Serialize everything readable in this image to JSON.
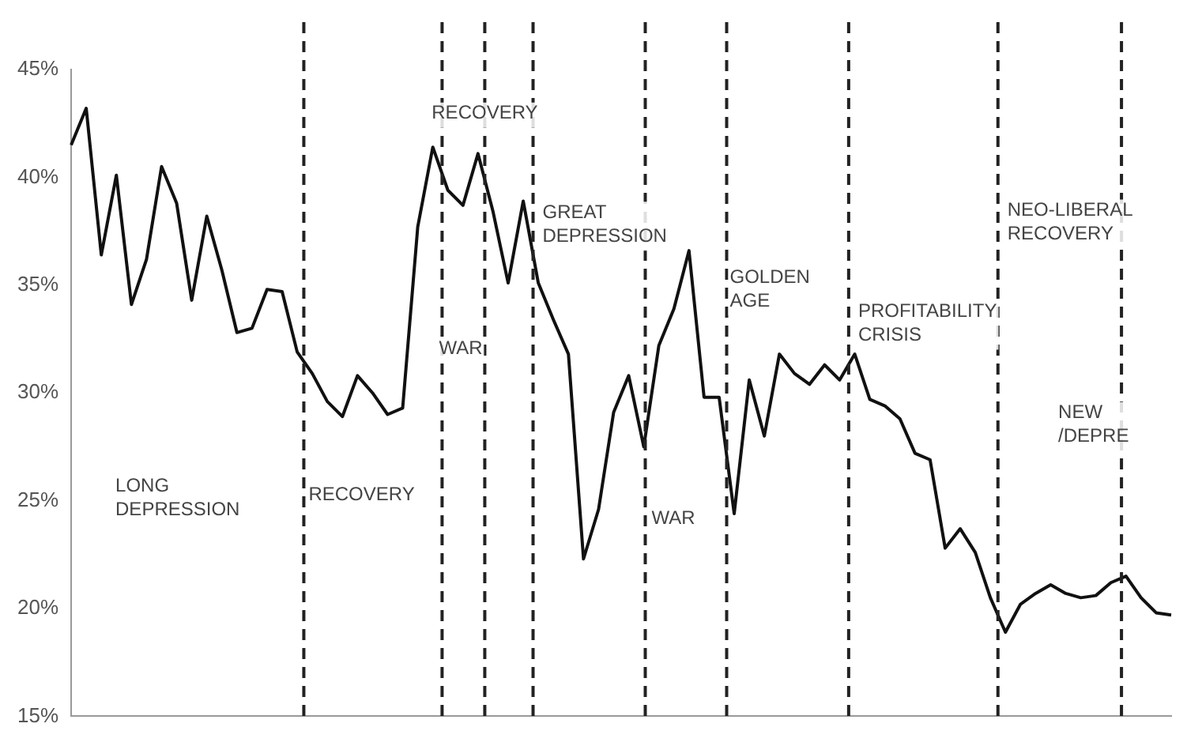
{
  "chart_data": {
    "type": "line",
    "tick_labels": "y",
    "grid": false,
    "legend": false,
    "marker": "none",
    "line_style": "solid",
    "categories": [
      null,
      null,
      null,
      null,
      null,
      null,
      null,
      null,
      null,
      null,
      null,
      null,
      null,
      null,
      null,
      null,
      null,
      null,
      null,
      null,
      null,
      null,
      null,
      null,
      null,
      null,
      null,
      null,
      null,
      null,
      null,
      null,
      null,
      null,
      null,
      null,
      null,
      null,
      null,
      null,
      null,
      null,
      null,
      null,
      null,
      null,
      null,
      null,
      null,
      null,
      null,
      null,
      null,
      null,
      null,
      null,
      null,
      null,
      null,
      null,
      null,
      null,
      null,
      null,
      null,
      null,
      null,
      null,
      null,
      null,
      null,
      null,
      null,
      null
    ],
    "ylim": [
      15,
      45
    ],
    "yticks": [
      {
        "value": 15,
        "label": "15%"
      },
      {
        "value": 20,
        "label": "20%"
      },
      {
        "value": 25,
        "label": "25%"
      },
      {
        "value": 30,
        "label": "30%"
      },
      {
        "value": 35,
        "label": "35%"
      },
      {
        "value": 40,
        "label": "40%"
      },
      {
        "value": 45,
        "label": "45%"
      }
    ],
    "series": [
      {
        "color": "#111111",
        "values": [
          41.5,
          43.2,
          36.4,
          40.1,
          34.1,
          36.2,
          40.5,
          38.8,
          34.3,
          38.2,
          35.7,
          32.8,
          33.0,
          34.8,
          34.7,
          31.9,
          30.9,
          29.6,
          28.9,
          30.8,
          30.0,
          29.0,
          29.3,
          37.7,
          41.4,
          39.4,
          38.7,
          41.1,
          38.4,
          35.1,
          38.9,
          35.1,
          33.4,
          31.8,
          22.3,
          24.6,
          29.1,
          30.8,
          27.5,
          32.2,
          33.9,
          36.6,
          29.8,
          29.8,
          24.4,
          30.6,
          28.0,
          31.8,
          30.9,
          30.4,
          31.3,
          30.6,
          31.8,
          29.7,
          29.4,
          28.8,
          27.2,
          26.9,
          22.8,
          23.7,
          22.6,
          20.5,
          18.9,
          20.2,
          20.7,
          21.1,
          20.7,
          20.5,
          20.6,
          21.2,
          21.5,
          20.5,
          19.8,
          19.7
        ]
      }
    ],
    "annotations": [
      "LONG DEPRESSION",
      "RECOVERY",
      "WAR",
      "RECOVERY",
      "GREAT DEPRESSION",
      "WAR",
      "GOLDEN AGE",
      "PROFITABILITY CRISIS",
      "NEO-LIBERAL RECOVERY",
      "NEW /DEPRE"
    ]
  }
}
